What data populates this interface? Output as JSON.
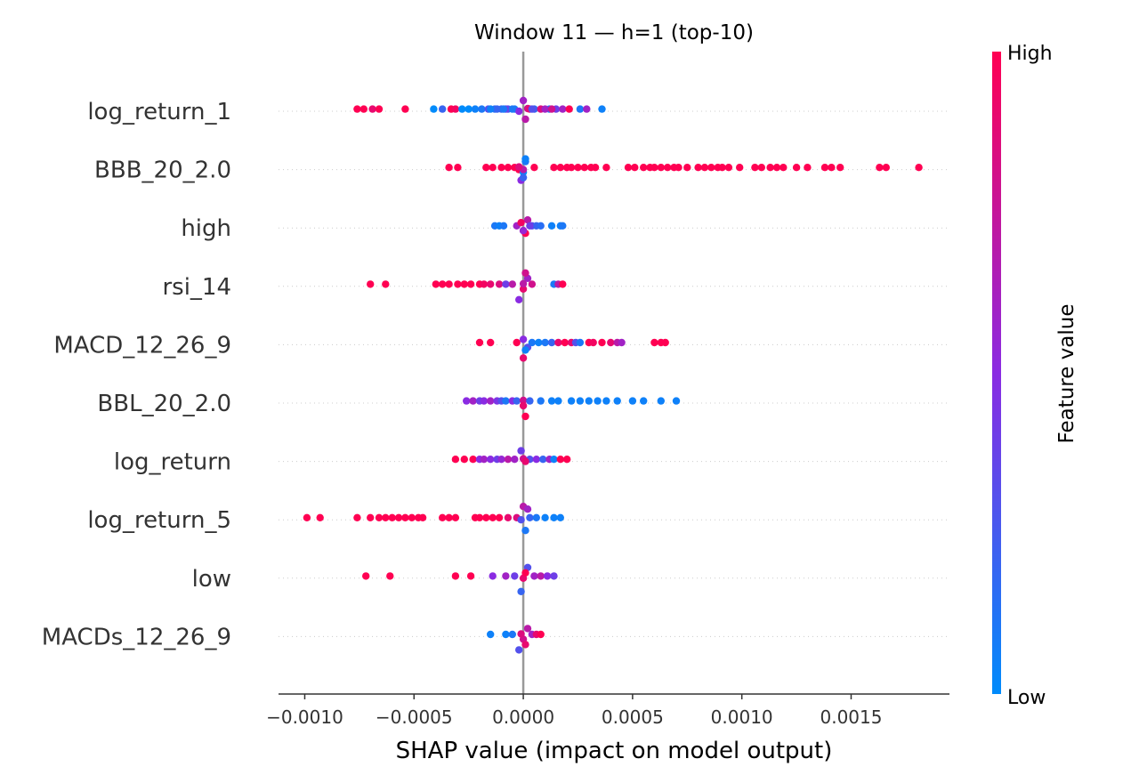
{
  "chart_data": {
    "type": "scatter",
    "subtype": "beeswarm",
    "title": "Window 11 — h=1 (top-10)",
    "xlabel": "SHAP value (impact on model output)",
    "xlim": [
      -0.00112,
      0.00195
    ],
    "xticks": [
      -0.001,
      -0.0005,
      0.0,
      0.0005,
      0.001,
      0.0015
    ],
    "xtick_labels": [
      "−0.0010",
      "−0.0005",
      "0.0000",
      "0.0005",
      "0.0010",
      "0.0015"
    ],
    "colorbar": {
      "label": "Feature value",
      "high": "High",
      "low": "Low",
      "high_color": "#ff0052",
      "mid_color": "#8a2be2",
      "low_color": "#008bfb"
    },
    "series": [
      {
        "name": "log_return_1",
        "points": [
          [
            -0.00076,
            1
          ],
          [
            -0.00073,
            1
          ],
          [
            -0.00069,
            0.9
          ],
          [
            -0.00066,
            1
          ],
          [
            -0.00054,
            1
          ],
          [
            -0.00041,
            0
          ],
          [
            -0.00037,
            0.2
          ],
          [
            -0.00033,
            1
          ],
          [
            -0.00031,
            0.95
          ],
          [
            -0.00028,
            0
          ],
          [
            -0.00025,
            0
          ],
          [
            -0.00022,
            0.05
          ],
          [
            -0.00019,
            0.1
          ],
          [
            -0.00016,
            0.3
          ],
          [
            -0.00013,
            0.15
          ],
          [
            -0.0001,
            0.2
          ],
          [
            -7e-05,
            0.25
          ],
          [
            -4e-05,
            0.1
          ],
          [
            -2e-05,
            0.5
          ],
          [
            0.0,
            0.6
          ],
          [
            1e-05,
            0.7
          ],
          [
            2e-05,
            0.8
          ],
          [
            3e-05,
            0.9
          ],
          [
            5e-05,
            0.2
          ],
          [
            8e-05,
            0.85
          ],
          [
            0.00012,
            0.1
          ],
          [
            0.00015,
            0.4
          ],
          [
            0.00018,
            0.6
          ],
          [
            0.00021,
            1
          ],
          [
            0.00026,
            0.1
          ],
          [
            0.00029,
            0.6
          ],
          [
            0.00036,
            0.05
          ],
          [
            -8e-05,
            0.4
          ],
          [
            -0.00012,
            0.2
          ],
          [
            4e-05,
            0.3
          ],
          [
            0.0001,
            0.6
          ],
          [
            -0.00015,
            0.05
          ],
          [
            -5e-05,
            0.1
          ],
          [
            0.00013,
            0.8
          ],
          [
            -9e-05,
            0.1
          ]
        ]
      },
      {
        "name": "BBB_20_2.0",
        "points": [
          [
            -0.00034,
            1
          ],
          [
            -0.0003,
            1
          ],
          [
            -0.00017,
            1
          ],
          [
            -0.00014,
            1
          ],
          [
            -0.0001,
            1
          ],
          [
            -7e-05,
            1
          ],
          [
            -4e-05,
            1
          ],
          [
            -2e-05,
            1
          ],
          [
            5e-05,
            1
          ],
          [
            0.00014,
            1
          ],
          [
            0.00017,
            1
          ],
          [
            0.0002,
            1
          ],
          [
            0.00022,
            1
          ],
          [
            0.00025,
            1
          ],
          [
            0.00028,
            1
          ],
          [
            0.00031,
            1
          ],
          [
            0.00033,
            1
          ],
          [
            0.00038,
            1
          ],
          [
            0.00048,
            1
          ],
          [
            0.00051,
            1
          ],
          [
            0.00055,
            1
          ],
          [
            0.00058,
            1
          ],
          [
            0.0006,
            1
          ],
          [
            0.00063,
            1
          ],
          [
            0.00066,
            1
          ],
          [
            0.00069,
            1
          ],
          [
            0.00071,
            1
          ],
          [
            0.00075,
            1
          ],
          [
            0.0008,
            1
          ],
          [
            0.00083,
            1
          ],
          [
            0.00086,
            1
          ],
          [
            0.00089,
            1
          ],
          [
            0.00091,
            1
          ],
          [
            0.00094,
            1
          ],
          [
            0.00099,
            1
          ],
          [
            0.00106,
            1
          ],
          [
            0.00109,
            1
          ],
          [
            0.00113,
            1
          ],
          [
            0.00116,
            1
          ],
          [
            0.00119,
            1
          ],
          [
            0.00125,
            1
          ],
          [
            0.0013,
            1
          ],
          [
            0.00138,
            1
          ],
          [
            0.00141,
            1
          ],
          [
            0.00145,
            1
          ],
          [
            0.00163,
            1
          ],
          [
            0.00166,
            1
          ],
          [
            0.00181,
            1
          ],
          [
            0.0,
            0
          ],
          [
            1e-05,
            0.1
          ],
          [
            -1e-05,
            0.5
          ],
          [
            0.0,
            0.7
          ],
          [
            1e-05,
            0.05
          ],
          [
            0.0,
            0.2
          ],
          [
            -2e-05,
            0.85
          ]
        ]
      },
      {
        "name": "high",
        "points": [
          [
            -0.00013,
            0.1
          ],
          [
            -0.00011,
            0.05
          ],
          [
            -9e-05,
            0.1
          ],
          [
            -3e-05,
            0.6
          ],
          [
            0.0,
            0.8
          ],
          [
            2e-05,
            0.7
          ],
          [
            4e-05,
            0.3
          ],
          [
            6e-05,
            0.2
          ],
          [
            8e-05,
            0.15
          ],
          [
            0.00013,
            0.05
          ],
          [
            0.00017,
            0.05
          ],
          [
            0.00018,
            0.1
          ],
          [
            1e-05,
            1
          ],
          [
            -1e-05,
            0.95
          ],
          [
            3e-05,
            0.4
          ],
          [
            0.0,
            0.55
          ]
        ]
      },
      {
        "name": "rsi_14",
        "points": [
          [
            -0.0007,
            1
          ],
          [
            -0.00063,
            1
          ],
          [
            -0.0004,
            1
          ],
          [
            -0.00037,
            1
          ],
          [
            -0.00034,
            1
          ],
          [
            -0.0003,
            1
          ],
          [
            -0.00027,
            1
          ],
          [
            -0.00024,
            1
          ],
          [
            -0.0002,
            1
          ],
          [
            -0.00018,
            0.95
          ],
          [
            -0.00015,
            0.9
          ],
          [
            -0.00011,
            0.85
          ],
          [
            -8e-05,
            0.4
          ],
          [
            -5e-05,
            0.7
          ],
          [
            -2e-05,
            0.5
          ],
          [
            0.0,
            0.9
          ],
          [
            2e-05,
            0.6
          ],
          [
            4e-05,
            0.8
          ],
          [
            0.00014,
            0.1
          ],
          [
            0.00016,
            0.7
          ],
          [
            0.00018,
            1
          ],
          [
            0.0,
            0.7
          ],
          [
            1e-05,
            0.8
          ]
        ]
      },
      {
        "name": "MACD_12_26_9",
        "points": [
          [
            -0.0002,
            1
          ],
          [
            -0.00015,
            1
          ],
          [
            -3e-05,
            1
          ],
          [
            0.0,
            0.9
          ],
          [
            2e-05,
            0.3
          ],
          [
            4e-05,
            0.1
          ],
          [
            7e-05,
            0.05
          ],
          [
            0.0001,
            0.1
          ],
          [
            0.00013,
            0.2
          ],
          [
            0.00016,
            0.9
          ],
          [
            0.00019,
            1
          ],
          [
            0.00022,
            0.9
          ],
          [
            0.00024,
            0.3
          ],
          [
            0.00026,
            0.1
          ],
          [
            0.0003,
            1
          ],
          [
            0.00032,
            0.95
          ],
          [
            0.00036,
            1
          ],
          [
            0.0004,
            0.9
          ],
          [
            0.00043,
            0.7
          ],
          [
            0.00045,
            0.6
          ],
          [
            0.0006,
            1
          ],
          [
            0.00063,
            1
          ],
          [
            0.00065,
            1
          ],
          [
            1e-05,
            0.05
          ],
          [
            0.0,
            0.5
          ]
        ]
      },
      {
        "name": "BBL_20_2.0",
        "points": [
          [
            -0.00026,
            0.5
          ],
          [
            -0.00023,
            0.6
          ],
          [
            -0.0002,
            0.4
          ],
          [
            -0.00018,
            0.5
          ],
          [
            -0.00015,
            0.6
          ],
          [
            -0.00012,
            0.45
          ],
          [
            -0.0001,
            0.3
          ],
          [
            -8e-05,
            0.1
          ],
          [
            -5e-05,
            0.5
          ],
          [
            -3e-05,
            0.2
          ],
          [
            0.0,
            0.8
          ],
          [
            3e-05,
            0.2
          ],
          [
            8e-05,
            0.1
          ],
          [
            0.00013,
            0.05
          ],
          [
            0.00016,
            0.05
          ],
          [
            0.00022,
            0.05
          ],
          [
            0.00026,
            0.05
          ],
          [
            0.0003,
            0.05
          ],
          [
            0.00034,
            0.05
          ],
          [
            0.00038,
            0.05
          ],
          [
            0.00043,
            0.05
          ],
          [
            0.0005,
            0.05
          ],
          [
            0.00055,
            0.05
          ],
          [
            0.00063,
            0.05
          ],
          [
            0.0007,
            0.05
          ],
          [
            1e-05,
            1
          ],
          [
            0.0,
            0.9
          ]
        ]
      },
      {
        "name": "log_return",
        "points": [
          [
            -0.00031,
            1
          ],
          [
            -0.00027,
            1
          ],
          [
            -0.00023,
            1
          ],
          [
            -0.0002,
            0.5
          ],
          [
            -0.00018,
            0.6
          ],
          [
            -0.00015,
            0.5
          ],
          [
            -0.00012,
            0.4
          ],
          [
            -0.0001,
            0.55
          ],
          [
            -7e-05,
            0.7
          ],
          [
            -4e-05,
            0.6
          ],
          [
            0.0,
            0.8
          ],
          [
            3e-05,
            0.3
          ],
          [
            6e-05,
            0.5
          ],
          [
            9e-05,
            0.2
          ],
          [
            0.00012,
            0.6
          ],
          [
            0.00014,
            0.05
          ],
          [
            0.00017,
            1
          ],
          [
            0.0002,
            1
          ],
          [
            1e-05,
            0.9
          ],
          [
            -1e-05,
            0.4
          ]
        ]
      },
      {
        "name": "log_return_5",
        "points": [
          [
            -0.00099,
            1
          ],
          [
            -0.00093,
            1
          ],
          [
            -0.00076,
            1
          ],
          [
            -0.0007,
            1
          ],
          [
            -0.00066,
            1
          ],
          [
            -0.00063,
            1
          ],
          [
            -0.0006,
            1
          ],
          [
            -0.00057,
            1
          ],
          [
            -0.00054,
            1
          ],
          [
            -0.00051,
            1
          ],
          [
            -0.00048,
            1
          ],
          [
            -0.00046,
            1
          ],
          [
            -0.00037,
            1
          ],
          [
            -0.00034,
            1
          ],
          [
            -0.00031,
            1
          ],
          [
            -0.00022,
            1
          ],
          [
            -0.0002,
            1
          ],
          [
            -0.00017,
            1
          ],
          [
            -0.00014,
            1
          ],
          [
            -0.00011,
            1
          ],
          [
            -7e-05,
            0.9
          ],
          [
            -3e-05,
            0.85
          ],
          [
            0.0,
            0.7
          ],
          [
            3e-05,
            0.2
          ],
          [
            6e-05,
            0.1
          ],
          [
            0.0001,
            0.05
          ],
          [
            0.00014,
            0.05
          ],
          [
            0.00017,
            0.05
          ],
          [
            1e-05,
            0.1
          ],
          [
            -1e-05,
            0.3
          ],
          [
            2e-05,
            0.6
          ]
        ]
      },
      {
        "name": "low",
        "points": [
          [
            -0.00072,
            1
          ],
          [
            -0.00061,
            1
          ],
          [
            -0.00031,
            1
          ],
          [
            -0.00024,
            1
          ],
          [
            -0.00014,
            0.5
          ],
          [
            -8e-05,
            0.6
          ],
          [
            -4e-05,
            0.4
          ],
          [
            0.0,
            0.9
          ],
          [
            2e-05,
            0.3
          ],
          [
            5e-05,
            0.6
          ],
          [
            8e-05,
            0.7
          ],
          [
            0.00011,
            0.5
          ],
          [
            0.00014,
            0.4
          ],
          [
            1e-05,
            1
          ],
          [
            -1e-05,
            0.2
          ]
        ]
      },
      {
        "name": "MACDs_12_26_9",
        "points": [
          [
            -0.00015,
            0.05
          ],
          [
            -8e-05,
            0.05
          ],
          [
            -5e-05,
            0.1
          ],
          [
            -2e-05,
            0.3
          ],
          [
            0.0,
            0.8
          ],
          [
            2e-05,
            0.7
          ],
          [
            4e-05,
            0.6
          ],
          [
            6e-05,
            0.9
          ],
          [
            8e-05,
            1
          ],
          [
            1e-05,
            0.9
          ],
          [
            -1e-05,
            0.85
          ]
        ]
      }
    ]
  }
}
